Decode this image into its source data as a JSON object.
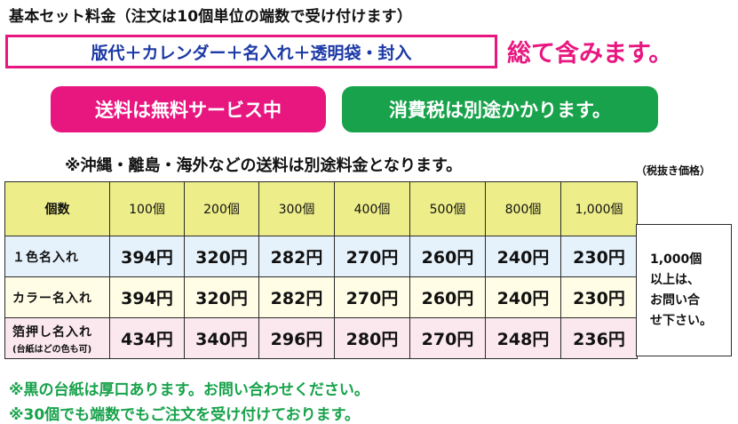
{
  "heading": "基本セット料金（注文は10個単位の端数で受け付けます）",
  "included": {
    "box_text": "版代＋カレンダー＋名入れ＋透明袋・封入",
    "suffix": "総て含みます。"
  },
  "badges": {
    "shipping": "送料は無料サービス中",
    "tax": "消費税は別途かかります。"
  },
  "notes": {
    "remote_shipping": "※沖縄・離島・海外などの送料は別途料金となります。",
    "tax_excluded": "（税抜き価格）",
    "large_order": "1,000個\n以上は、\nお問い合\nせ下さい。",
    "black_paper": "※黒の台紙は厚口あります。お問い合わせください。",
    "fractional": "※30個でも端数でもご注文を受け付けております。"
  },
  "table": {
    "headers": [
      "個数",
      "100個",
      "200個",
      "300個",
      "400個",
      "500個",
      "800個",
      "1,000個"
    ],
    "rows": [
      {
        "label": "１色名入れ",
        "sub": "",
        "prices": [
          "394円",
          "320円",
          "282円",
          "270円",
          "260円",
          "240円",
          "230円"
        ]
      },
      {
        "label": "カラー名入れ",
        "sub": "",
        "prices": [
          "394円",
          "320円",
          "282円",
          "270円",
          "260円",
          "240円",
          "230円"
        ]
      },
      {
        "label": "箔押し名入れ",
        "sub": "(台紙はどの色も可)",
        "prices": [
          "434円",
          "340円",
          "296円",
          "280円",
          "270円",
          "248円",
          "236円"
        ]
      }
    ]
  },
  "colors": {
    "accent_pink": "#e8177f",
    "accent_green": "#18a24b",
    "accent_blue": "#1c39a6",
    "header_yellow": "#eded8a"
  }
}
